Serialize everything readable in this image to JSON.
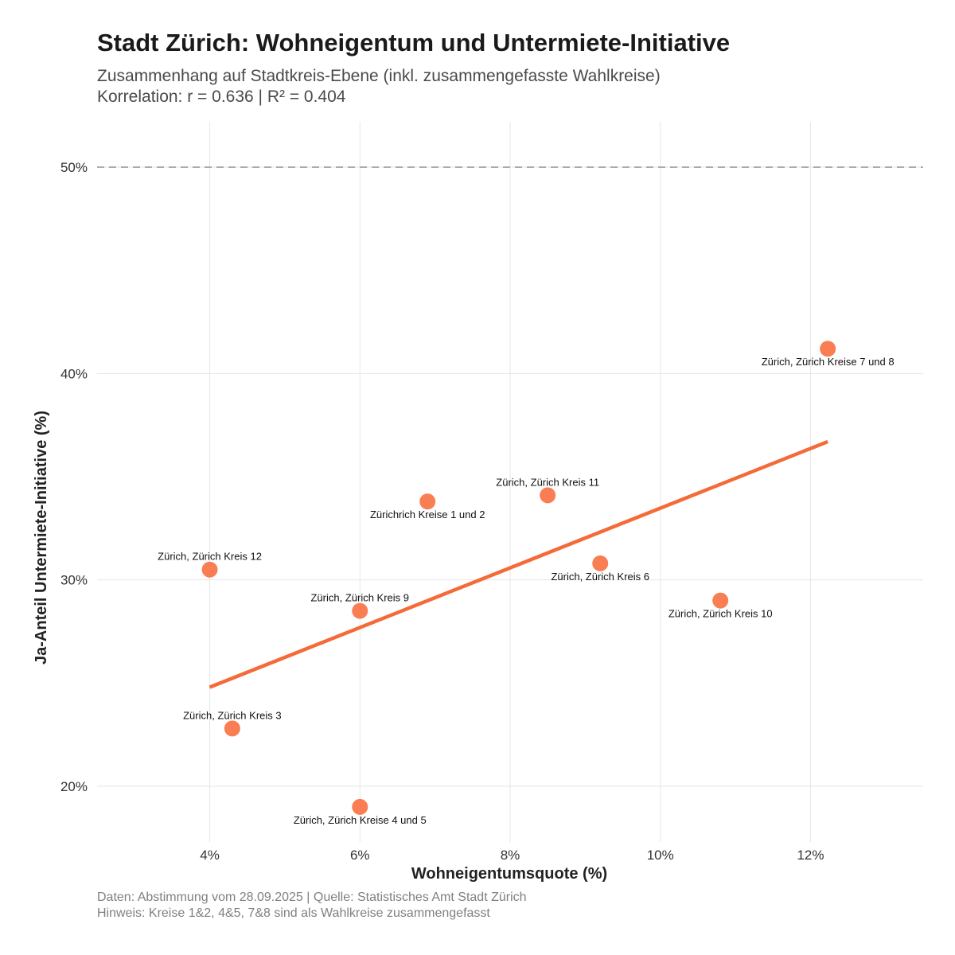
{
  "header": {
    "title": "Stadt Zürich: Wohneigentum und Untermiete-Initiative",
    "subtitle_line1": "Zusammenhang auf Stadtkreis-Ebene (inkl. zusammengefasste Wahlkreise)",
    "subtitle_line2": "Korrelation: r = 0.636 | R² = 0.404"
  },
  "footer": {
    "caption_line1": "Daten: Abstimmung vom 28.09.2025 | Quelle: Statistisches Amt Stadt Zürich",
    "caption_line2": "Hinweis: Kreise 1&2, 4&5, 7&8 sind als Wahlkreise zusammengefasst"
  },
  "colors": {
    "point": "#F97040",
    "trend": "#F46A38",
    "grid": "#e6e6e6",
    "refline": "#aaaaaa"
  },
  "chart_data": {
    "type": "scatter",
    "title": "Stadt Zürich: Wohneigentum und Untermiete-Initiative",
    "xlabel": "Wohneigentumsquote (%)",
    "ylabel": "Ja-Anteil Untermiete-Initiative (%)",
    "xlim": [
      2.5,
      13.5
    ],
    "ylim": [
      17.3,
      52.2
    ],
    "x_ticks": [
      4,
      6,
      8,
      10,
      12
    ],
    "x_tick_labels": [
      "4%",
      "6%",
      "8%",
      "10%",
      "12%"
    ],
    "y_ticks": [
      20,
      30,
      40,
      50
    ],
    "y_tick_labels": [
      "20%",
      "30%",
      "40%",
      "50%"
    ],
    "grid": true,
    "reference_line": {
      "y": 50,
      "style": "dashed"
    },
    "trend_line": {
      "x": [
        4.0,
        12.23
      ],
      "y": [
        24.8,
        36.7
      ]
    },
    "points": [
      {
        "label": "Zürichrich Kreise 1 und 2",
        "x": 6.9,
        "y": 33.8,
        "label_pos": "below"
      },
      {
        "label": "Zürich, Zürich Kreis 3",
        "x": 4.3,
        "y": 22.8,
        "label_pos": "above"
      },
      {
        "label": "Zürich, Zürich Kreise 4 und 5",
        "x": 6.0,
        "y": 19.0,
        "label_pos": "below"
      },
      {
        "label": "Zürich, Zürich Kreis 6",
        "x": 9.2,
        "y": 30.8,
        "label_pos": "below"
      },
      {
        "label": "Zürich, Zürich Kreise 7 und 8",
        "x": 12.23,
        "y": 41.2,
        "label_pos": "below"
      },
      {
        "label": "Zürich, Zürich Kreis 9",
        "x": 6.0,
        "y": 28.5,
        "label_pos": "above"
      },
      {
        "label": "Zürich, Zürich Kreis 10",
        "x": 10.8,
        "y": 29.0,
        "label_pos": "below"
      },
      {
        "label": "Zürich, Zürich Kreis 11",
        "x": 8.5,
        "y": 34.1,
        "label_pos": "above"
      },
      {
        "label": "Zürich, Zürich Kreis 12",
        "x": 4.0,
        "y": 30.5,
        "label_pos": "above"
      }
    ]
  }
}
